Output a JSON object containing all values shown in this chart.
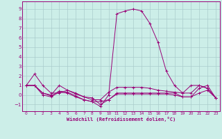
{
  "xlabel": "Windchill (Refroidissement éolien,°C)",
  "xlim": [
    -0.5,
    23.5
  ],
  "ylim": [
    -1.7,
    9.8
  ],
  "yticks": [
    -1,
    0,
    1,
    2,
    3,
    4,
    5,
    6,
    7,
    8,
    9
  ],
  "xticks": [
    0,
    1,
    2,
    3,
    4,
    5,
    6,
    7,
    8,
    9,
    10,
    11,
    12,
    13,
    14,
    15,
    16,
    17,
    18,
    19,
    20,
    21,
    22,
    23
  ],
  "bg_color": "#cceee8",
  "grid_color": "#aacccc",
  "line_color": "#990077",
  "series": [
    [
      1.0,
      2.2,
      1.0,
      0.2,
      0.2,
      0.5,
      0.1,
      -0.2,
      -0.5,
      -0.5,
      0.3,
      0.8,
      0.8,
      0.8,
      0.8,
      0.7,
      0.5,
      0.4,
      0.3,
      0.2,
      0.2,
      1.0,
      0.7,
      -0.3
    ],
    [
      1.0,
      1.0,
      0.2,
      0.0,
      1.0,
      0.5,
      0.2,
      -0.2,
      -0.3,
      -1.0,
      -0.5,
      0.1,
      0.1,
      0.1,
      0.1,
      0.1,
      0.1,
      0.1,
      0.0,
      -0.2,
      -0.2,
      0.2,
      0.5,
      -0.3
    ],
    [
      1.0,
      1.0,
      0.2,
      -0.1,
      0.4,
      0.3,
      -0.1,
      -0.5,
      -0.7,
      -0.7,
      -0.5,
      0.2,
      0.2,
      0.2,
      0.2,
      0.2,
      0.2,
      0.2,
      0.2,
      -0.2,
      -0.2,
      0.7,
      1.0,
      -0.3
    ],
    [
      1.0,
      1.0,
      0.0,
      -0.2,
      0.3,
      0.2,
      -0.2,
      -0.5,
      -0.7,
      -1.2,
      0.0,
      8.5,
      8.8,
      9.0,
      8.8,
      7.5,
      5.5,
      2.5,
      1.0,
      0.2,
      1.0,
      1.0,
      0.7,
      -0.3
    ]
  ]
}
